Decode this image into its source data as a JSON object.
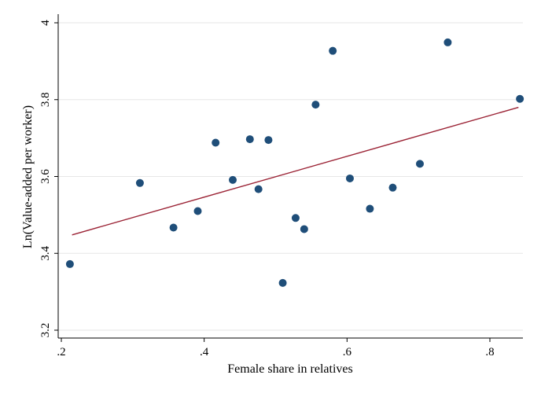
{
  "chart_data": {
    "type": "scatter",
    "xlabel": "Female share in relatives",
    "ylabel": "Ln(Value-added per worker)",
    "xlim": [
      0.2,
      0.85
    ],
    "ylim": [
      3.2,
      4.0
    ],
    "xticks": [
      0.2,
      0.4,
      0.6,
      0.8
    ],
    "xtick_labels": [
      ".2",
      ".4",
      ".6",
      ".8"
    ],
    "yticks": [
      3.2,
      3.4,
      3.6,
      3.8,
      4.0
    ],
    "ytick_labels": [
      "3.2",
      "3.4",
      "3.6",
      "3.8",
      "4"
    ],
    "grid": true,
    "points": [
      {
        "x": 0.212,
        "y": 3.372
      },
      {
        "x": 0.31,
        "y": 3.583
      },
      {
        "x": 0.357,
        "y": 3.467
      },
      {
        "x": 0.391,
        "y": 3.51
      },
      {
        "x": 0.416,
        "y": 3.688
      },
      {
        "x": 0.44,
        "y": 3.591
      },
      {
        "x": 0.464,
        "y": 3.697
      },
      {
        "x": 0.476,
        "y": 3.567
      },
      {
        "x": 0.49,
        "y": 3.695
      },
      {
        "x": 0.51,
        "y": 3.323
      },
      {
        "x": 0.528,
        "y": 3.492
      },
      {
        "x": 0.54,
        "y": 3.463
      },
      {
        "x": 0.556,
        "y": 3.787
      },
      {
        "x": 0.58,
        "y": 3.927
      },
      {
        "x": 0.604,
        "y": 3.595
      },
      {
        "x": 0.632,
        "y": 3.516
      },
      {
        "x": 0.664,
        "y": 3.571
      },
      {
        "x": 0.702,
        "y": 3.633
      },
      {
        "x": 0.741,
        "y": 3.949
      },
      {
        "x": 0.842,
        "y": 3.802
      }
    ],
    "fit_line": {
      "x": [
        0.215,
        0.84
      ],
      "y": [
        3.448,
        3.78
      ]
    },
    "colors": {
      "points": "#1f4e79",
      "fit_line": "#9b2335",
      "grid": "#e6e6e6",
      "axis": "#000000"
    }
  }
}
